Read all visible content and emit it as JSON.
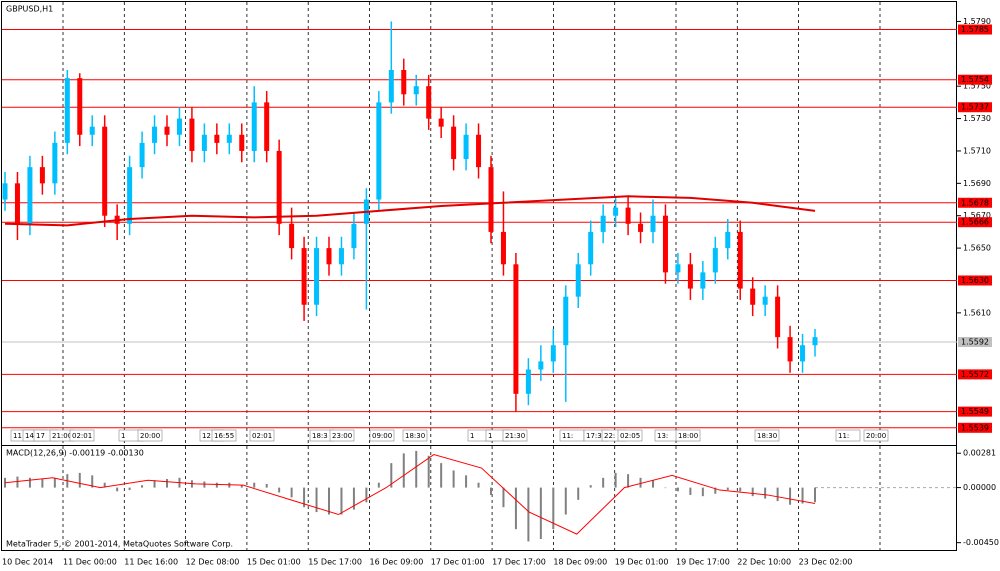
{
  "chart_data": [
    {
      "type": "candlestick",
      "title": "GBPUSD,H1",
      "footer": "MetaTrader 5, © 2001-2014, MetaQuotes Software Corp.",
      "x_labels": [
        "10 Dec 2014",
        "11 Dec 00:00",
        "11 Dec 16:00",
        "12 Dec 08:00",
        "15 Dec 01:00",
        "15 Dec 17:00",
        "16 Dec 09:00",
        "17 Dec 01:00",
        "17 Dec 17:00",
        "18 Dec 09:00",
        "19 Dec 01:00",
        "19 Dec 17:00",
        "22 Dec 10:00",
        "23 Dec 02:00"
      ],
      "session_labels": [
        "11",
        "14",
        "17",
        "21:00",
        "02:01",
        "1",
        "20:00",
        "12",
        "16:55",
        "02:01",
        "18:3",
        "23:00",
        "09:00",
        "18:30",
        "1",
        "1",
        "21:30",
        "11:",
        "17:3",
        "22:",
        "02:05",
        "13:",
        "18:00",
        "18:30",
        "11:",
        "20:00"
      ],
      "up_color": "#00bfff",
      "down_color": "#ff0000",
      "open": [
        1.568,
        1.569,
        1.5665,
        1.57,
        1.569,
        1.5715,
        1.5755,
        1.572,
        1.5725,
        1.567,
        1.5665,
        1.57,
        1.5715,
        1.5725,
        1.572,
        1.573,
        1.571,
        1.572,
        1.5715,
        1.572,
        1.571,
        1.574,
        1.571,
        1.5665,
        1.565,
        1.5615,
        1.565,
        1.564,
        1.565,
        1.5665,
        1.568,
        1.574,
        1.576,
        1.5745,
        1.575,
        1.573,
        1.5725,
        1.5705,
        1.572,
        1.57,
        1.566,
        1.564,
        1.556,
        1.5575,
        1.558,
        1.559,
        1.562,
        1.564,
        1.566,
        1.567,
        1.5675,
        1.5665,
        1.566,
        1.567,
        1.5635,
        1.564,
        1.5625,
        1.5635,
        1.565,
        1.566,
        1.5625,
        1.5615,
        1.562,
        1.5595,
        1.558,
        1.559
      ],
      "high": [
        1.5697,
        1.5697,
        1.5707,
        1.5707,
        1.5722,
        1.576,
        1.5758,
        1.5732,
        1.5732,
        1.5677,
        1.5707,
        1.5722,
        1.5732,
        1.5732,
        1.5737,
        1.5737,
        1.5727,
        1.5727,
        1.5727,
        1.5727,
        1.575,
        1.5747,
        1.5717,
        1.5675,
        1.5657,
        1.5657,
        1.5657,
        1.5657,
        1.5672,
        1.5687,
        1.5747,
        1.579,
        1.5767,
        1.5757,
        1.5757,
        1.5737,
        1.5732,
        1.5727,
        1.5727,
        1.5707,
        1.5685,
        1.5647,
        1.5582,
        1.559,
        1.56,
        1.5627,
        1.5647,
        1.5667,
        1.5677,
        1.5682,
        1.5682,
        1.5672,
        1.568,
        1.5677,
        1.5647,
        1.5647,
        1.5642,
        1.5657,
        1.5668,
        1.5667,
        1.5632,
        1.5627,
        1.5627,
        1.5602,
        1.5597,
        1.56
      ],
      "low": [
        1.5673,
        1.5655,
        1.5658,
        1.5683,
        1.5683,
        1.5708,
        1.5713,
        1.5713,
        1.5663,
        1.5655,
        1.5658,
        1.5693,
        1.5708,
        1.5713,
        1.5713,
        1.5703,
        1.5703,
        1.5708,
        1.5708,
        1.5703,
        1.5703,
        1.5703,
        1.5658,
        1.5643,
        1.5605,
        1.5608,
        1.5633,
        1.5633,
        1.5643,
        1.5612,
        1.5673,
        1.5733,
        1.5738,
        1.5738,
        1.5723,
        1.5718,
        1.5698,
        1.5698,
        1.5693,
        1.5653,
        1.5633,
        1.5549,
        1.5553,
        1.5568,
        1.5573,
        1.5555,
        1.5613,
        1.5633,
        1.5653,
        1.5663,
        1.5658,
        1.5653,
        1.5653,
        1.5628,
        1.5628,
        1.5618,
        1.5618,
        1.5628,
        1.5643,
        1.5618,
        1.5608,
        1.5608,
        1.5588,
        1.5573,
        1.5573,
        1.5583
      ],
      "close": [
        1.569,
        1.5665,
        1.57,
        1.569,
        1.5715,
        1.5755,
        1.572,
        1.5725,
        1.567,
        1.5665,
        1.57,
        1.5715,
        1.5725,
        1.572,
        1.573,
        1.571,
        1.572,
        1.5715,
        1.572,
        1.571,
        1.574,
        1.571,
        1.5665,
        1.565,
        1.5615,
        1.565,
        1.564,
        1.565,
        1.5665,
        1.568,
        1.574,
        1.576,
        1.5745,
        1.575,
        1.573,
        1.5725,
        1.5705,
        1.572,
        1.57,
        1.566,
        1.564,
        1.556,
        1.5575,
        1.558,
        1.559,
        1.562,
        1.564,
        1.566,
        1.567,
        1.5675,
        1.5665,
        1.566,
        1.567,
        1.5635,
        1.564,
        1.5625,
        1.5635,
        1.565,
        1.566,
        1.5625,
        1.5615,
        1.562,
        1.5595,
        1.558,
        1.559,
        1.5595
      ],
      "moving_average": {
        "color": "#e00000",
        "values": [
          1.5665,
          1.5664,
          1.5668,
          1.567,
          1.5669,
          1.567,
          1.5673,
          1.5676,
          1.5678,
          1.568,
          1.5682,
          1.5681,
          1.5678,
          1.5673
        ]
      },
      "levels": [
        1.5785,
        1.5754,
        1.5737,
        1.5678,
        1.5666,
        {
          "value": 1.563,
          "label": "1.5630"
        },
        1.5572,
        1.5549,
        1.5539
      ],
      "level_color": "#ff0000",
      "current_price": 1.5592,
      "ylim": [
        1.5529,
        1.5802
      ],
      "yticks": [
        {
          "value": 1.579,
          "label": "1.5790"
        },
        {
          "value": 1.575,
          "label": "1.5750"
        },
        {
          "value": 1.573,
          "label": "1.5730"
        },
        {
          "value": 1.571,
          "label": "1.5710"
        },
        {
          "value": 1.569,
          "label": "1.5690"
        },
        {
          "value": 1.567,
          "label": "1.5670"
        },
        {
          "value": 1.565,
          "label": "1.5650"
        },
        {
          "value": 1.561,
          "label": "1.5610"
        }
      ],
      "grid": true
    },
    {
      "type": "macd",
      "title": "MACD(12,26,9) -0.00119 -0.00130",
      "histogram": {
        "color": "#808080",
        "values": [
          0.0008,
          0.0009,
          0.0008,
          0.0007,
          0.0008,
          0.0011,
          0.0012,
          0.001,
          0.0004,
          -0.0003,
          -0.0002,
          0.0002,
          0.0006,
          0.0007,
          0.0008,
          0.0006,
          0.0005,
          0.0004,
          0.0004,
          0.0002,
          0.0004,
          0.0003,
          -0.0004,
          -0.0008,
          -0.0016,
          -0.002,
          -0.0022,
          -0.0022,
          -0.0018,
          -0.0012,
          0.0004,
          0.002,
          0.0028,
          0.003,
          0.0026,
          0.002,
          0.0014,
          0.001,
          0.0004,
          -0.0006,
          -0.0016,
          -0.0034,
          -0.0044,
          -0.0042,
          -0.0034,
          -0.0022,
          -0.001,
          0.0002,
          0.0008,
          0.0012,
          0.0011,
          0.0008,
          0.0006,
          0.0,
          -0.0003,
          -0.0006,
          -0.0007,
          -0.0005,
          -0.0002,
          -0.0003,
          -0.0007,
          -0.0009,
          -0.0011,
          -0.0014,
          -0.0013,
          -0.0012
        ]
      },
      "signal": {
        "color": "#ff0000",
        "values": [
          0.0004,
          0.0008,
          0.0,
          0.0006,
          0.0003,
          0.0002,
          -0.001,
          -0.0022,
          0.0,
          0.0027,
          0.0016,
          -0.002,
          -0.0038,
          0.0,
          0.001,
          -0.0002,
          -0.0006,
          -0.0013
        ]
      },
      "ylim": [
        -0.0051,
        0.0034
      ],
      "yticks": [
        0.00281,
        {
          "value": 0,
          "label": "0.00000"
        },
        {
          "value": -0.0045,
          "label": "-0.00450"
        }
      ]
    }
  ]
}
